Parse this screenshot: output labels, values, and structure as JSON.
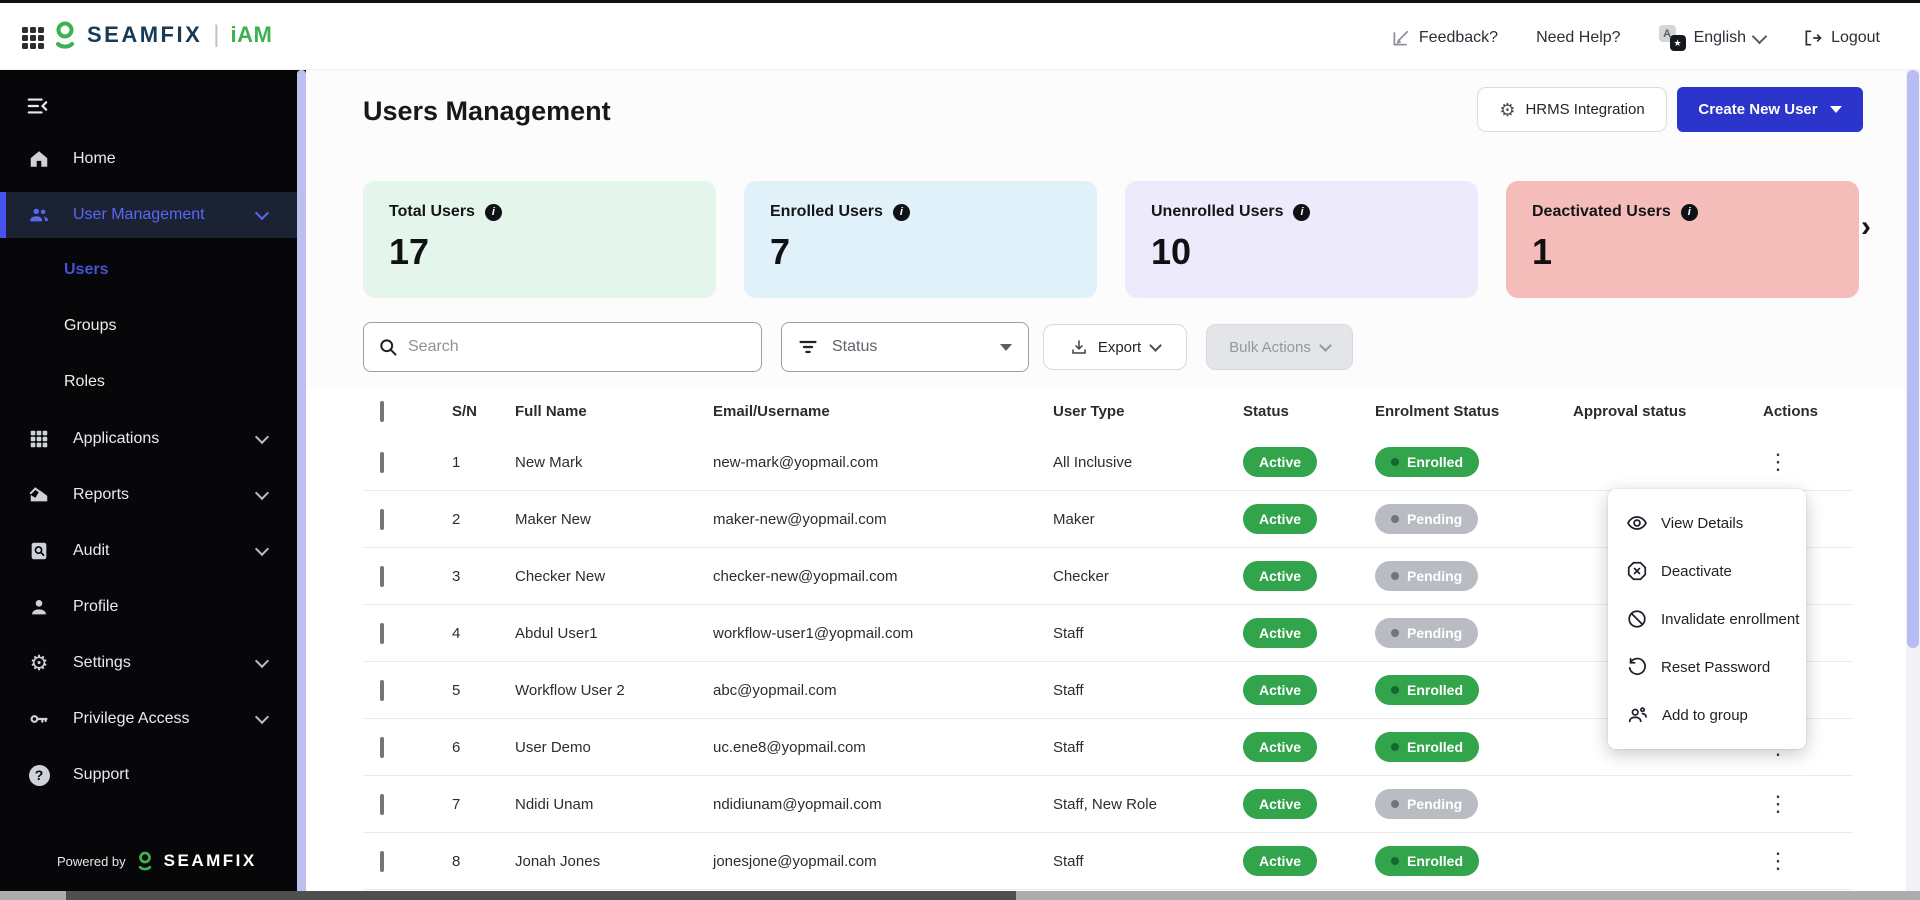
{
  "header": {
    "brand": "SEAMFIX",
    "product": "iAM",
    "feedback": "Feedback?",
    "need_help": "Need Help?",
    "language": "English",
    "logout": "Logout"
  },
  "sidebar": {
    "items": [
      {
        "label": "Home",
        "icon": "home-icon",
        "chevron": false,
        "active": false
      },
      {
        "label": "User Management",
        "icon": "users-icon",
        "chevron": true,
        "active": true,
        "children": [
          {
            "label": "Users",
            "active": true
          },
          {
            "label": "Groups",
            "active": false
          },
          {
            "label": "Roles",
            "active": false
          }
        ]
      },
      {
        "label": "Applications",
        "icon": "apps-grid-icon",
        "chevron": true,
        "active": false
      },
      {
        "label": "Reports",
        "icon": "chart-icon",
        "chevron": true,
        "active": false
      },
      {
        "label": "Audit",
        "icon": "audit-icon",
        "chevron": true,
        "active": false
      },
      {
        "label": "Profile",
        "icon": "person-icon",
        "chevron": false,
        "active": false
      },
      {
        "label": "Settings",
        "icon": "gear-icon",
        "chevron": true,
        "active": false
      },
      {
        "label": "Privilege Access",
        "icon": "key-icon",
        "chevron": true,
        "active": false
      },
      {
        "label": "Support",
        "icon": "question-icon",
        "chevron": false,
        "active": false
      }
    ],
    "footer": {
      "powered_by": "Powered by",
      "brand": "SEAMFIX"
    }
  },
  "page": {
    "title": "Users Management",
    "hrms_button": "HRMS Integration",
    "create_button": "Create New User"
  },
  "stats": [
    {
      "label": "Total Users",
      "value": "17",
      "bg": "#e4f5eb"
    },
    {
      "label": "Enrolled Users",
      "value": "7",
      "bg": "#e1f1fa"
    },
    {
      "label": "Unenrolled Users",
      "value": "10",
      "bg": "#edeafb"
    },
    {
      "label": "Deactivated Users",
      "value": "1",
      "bg": "#f5bdba"
    }
  ],
  "filters": {
    "search_placeholder": "Search",
    "status_label": "Status",
    "export_label": "Export",
    "bulk_label": "Bulk Actions"
  },
  "table": {
    "columns": [
      "S/N",
      "Full Name",
      "Email/Username",
      "User Type",
      "Status",
      "Enrolment Status",
      "Approval status",
      "Actions"
    ],
    "rows": [
      {
        "sn": "1",
        "name": "New Mark",
        "email": "new-mark@yopmail.com",
        "type": "All Inclusive",
        "status": "Active",
        "enrolment": "Enrolled",
        "approval": ""
      },
      {
        "sn": "2",
        "name": "Maker New",
        "email": "maker-new@yopmail.com",
        "type": "Maker",
        "status": "Active",
        "enrolment": "Pending",
        "approval": ""
      },
      {
        "sn": "3",
        "name": "Checker New",
        "email": "checker-new@yopmail.com",
        "type": "Checker",
        "status": "Active",
        "enrolment": "Pending",
        "approval": ""
      },
      {
        "sn": "4",
        "name": "Abdul User1",
        "email": "workflow-user1@yopmail.com",
        "type": "Staff",
        "status": "Active",
        "enrolment": "Pending",
        "approval": ""
      },
      {
        "sn": "5",
        "name": "Workflow User 2",
        "email": "abc@yopmail.com",
        "type": "Staff",
        "status": "Active",
        "enrolment": "Enrolled",
        "approval": ""
      },
      {
        "sn": "6",
        "name": "User Demo",
        "email": "uc.ene8@yopmail.com",
        "type": "Staff",
        "status": "Active",
        "enrolment": "Enrolled",
        "approval": ""
      },
      {
        "sn": "7",
        "name": "Ndidi Unam",
        "email": "ndidiunam@yopmail.com",
        "type": "Staff, New Role",
        "status": "Active",
        "enrolment": "Pending",
        "approval": ""
      },
      {
        "sn": "8",
        "name": "Jonah Jones",
        "email": "jonesjone@yopmail.com",
        "type": "Staff",
        "status": "Active",
        "enrolment": "Enrolled",
        "approval": ""
      }
    ]
  },
  "context_menu": {
    "items": [
      {
        "label": "View Details",
        "icon": "eye-icon"
      },
      {
        "label": "Deactivate",
        "icon": "x-circle-icon"
      },
      {
        "label": "Invalidate enrollment",
        "icon": "ban-icon"
      },
      {
        "label": "Reset Password",
        "icon": "reset-icon"
      },
      {
        "label": "Add to group",
        "icon": "add-group-icon"
      }
    ]
  },
  "colors": {
    "accent_indigo": "#2b34cb",
    "sidebar_active": "#5a67f2",
    "badge_green": "#31a44c",
    "badge_gray": "#b9bdc3",
    "card_green": "#e4f5eb",
    "card_blue": "#e1f1fa",
    "card_purple": "#edeafb",
    "card_red": "#f5bdba"
  }
}
